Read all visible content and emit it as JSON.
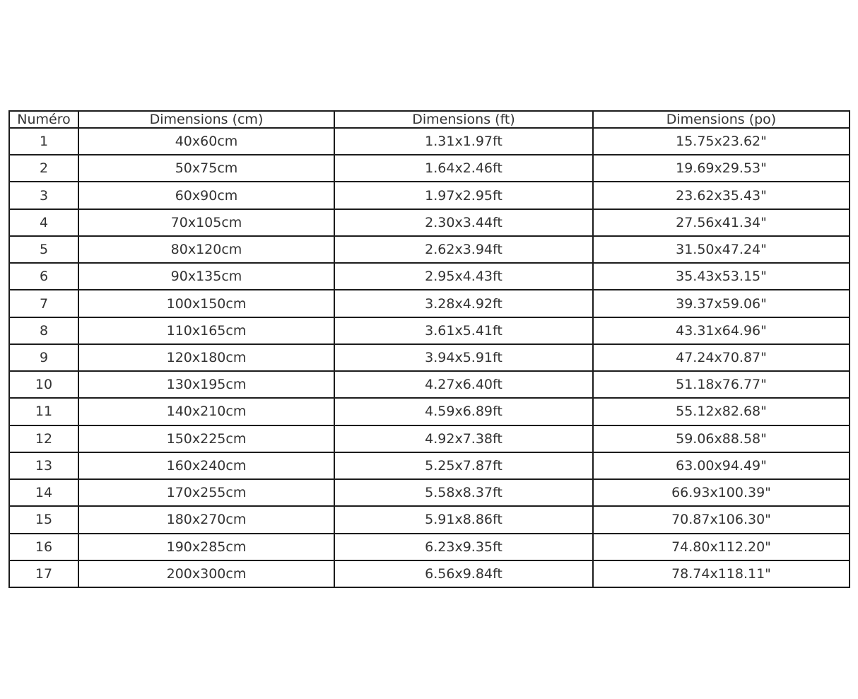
{
  "table": {
    "headers": [
      "Numéro",
      "Dimensions (cm)",
      "Dimensions (ft)",
      "Dimensions (po)"
    ],
    "rows": [
      {
        "numero": "1",
        "cm": "40x60cm",
        "ft": "1.31x1.97ft",
        "po": "15.75x23.62\""
      },
      {
        "numero": "2",
        "cm": "50x75cm",
        "ft": "1.64x2.46ft",
        "po": "19.69x29.53\""
      },
      {
        "numero": "3",
        "cm": "60x90cm",
        "ft": "1.97x2.95ft",
        "po": "23.62x35.43\""
      },
      {
        "numero": "4",
        "cm": "70x105cm",
        "ft": "2.30x3.44ft",
        "po": "27.56x41.34\""
      },
      {
        "numero": "5",
        "cm": "80x120cm",
        "ft": "2.62x3.94ft",
        "po": "31.50x47.24\""
      },
      {
        "numero": "6",
        "cm": "90x135cm",
        "ft": "2.95x4.43ft",
        "po": "35.43x53.15\""
      },
      {
        "numero": "7",
        "cm": "100x150cm",
        "ft": "3.28x4.92ft",
        "po": "39.37x59.06\""
      },
      {
        "numero": "8",
        "cm": "110x165cm",
        "ft": "3.61x5.41ft",
        "po": "43.31x64.96\""
      },
      {
        "numero": "9",
        "cm": "120x180cm",
        "ft": "3.94x5.91ft",
        "po": "47.24x70.87\""
      },
      {
        "numero": "10",
        "cm": "130x195cm",
        "ft": "4.27x6.40ft",
        "po": "51.18x76.77\""
      },
      {
        "numero": "11",
        "cm": "140x210cm",
        "ft": "4.59x6.89ft",
        "po": "55.12x82.68\""
      },
      {
        "numero": "12",
        "cm": "150x225cm",
        "ft": "4.92x7.38ft",
        "po": "59.06x88.58\""
      },
      {
        "numero": "13",
        "cm": "160x240cm",
        "ft": "5.25x7.87ft",
        "po": "63.00x94.49\""
      },
      {
        "numero": "14",
        "cm": "170x255cm",
        "ft": "5.58x8.37ft",
        "po": "66.93x100.39\""
      },
      {
        "numero": "15",
        "cm": "180x270cm",
        "ft": "5.91x8.86ft",
        "po": "70.87x106.30\""
      },
      {
        "numero": "16",
        "cm": "190x285cm",
        "ft": "6.23x9.35ft",
        "po": "74.80x112.20\""
      },
      {
        "numero": "17",
        "cm": "200x300cm",
        "ft": "6.56x9.84ft",
        "po": "78.74x118.11\""
      }
    ]
  },
  "colors": {
    "background": "#ffffff",
    "border": "#1c1c1c",
    "text": "#333333"
  }
}
